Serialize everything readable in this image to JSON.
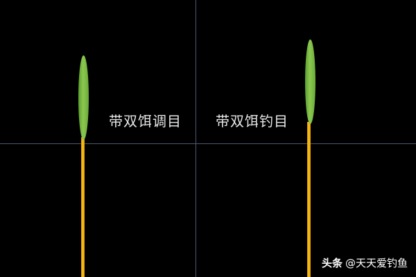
{
  "floats": [
    {
      "label": "带双饵调目"
    },
    {
      "label": "带双饵钓目"
    }
  ],
  "colors": {
    "background": "#000000",
    "tip": "#7ab845",
    "stem": "#f5b400",
    "guide_lines": "#4a5a72"
  },
  "watermark": {
    "brand": "头条",
    "handle": "@天天爱钓鱼"
  }
}
